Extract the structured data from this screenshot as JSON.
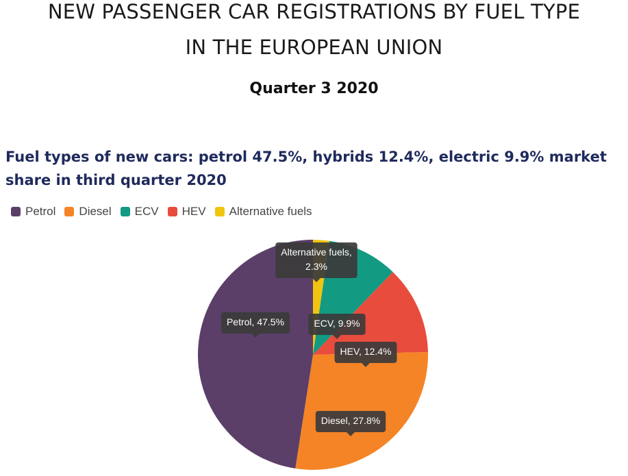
{
  "header": {
    "title_line1": "NEW PASSENGER CAR REGISTRATIONS BY FUEL TYPE",
    "title_line2": "IN THE EUROPEAN UNION",
    "period": "Quarter 3 2020"
  },
  "colors": {
    "Petrol": "#5b3f68",
    "Diesel": "#f58426",
    "ECV": "#139a82",
    "HEV": "#e84c3d",
    "Alternative fuels": "#f1c40f",
    "subtitle": "#1f2a5c",
    "callout": "#3b3b3b"
  },
  "chart_data": {
    "type": "pie",
    "title": "Fuel types of new cars: petrol 47.5%, hybrids 12.4%, electric 9.9% market share in third quarter 2020",
    "legend_position": "top-left",
    "start_angle": "12 o'clock",
    "direction": "clockwise",
    "slices": [
      {
        "label": "Alternative fuels",
        "value": 2.3,
        "callout": "Alternative fuels,|2.3%"
      },
      {
        "label": "ECV",
        "value": 9.9,
        "callout": "ECV, 9.9%"
      },
      {
        "label": "HEV",
        "value": 12.4,
        "callout": "HEV, 12.4%"
      },
      {
        "label": "Diesel",
        "value": 27.8,
        "callout": "Diesel, 27.8%"
      },
      {
        "label": "Petrol",
        "value": 47.5,
        "callout": "Petrol, 47.5%"
      }
    ],
    "legend": [
      "Petrol",
      "Diesel",
      "ECV",
      "HEV",
      "Alternative fuels"
    ]
  }
}
